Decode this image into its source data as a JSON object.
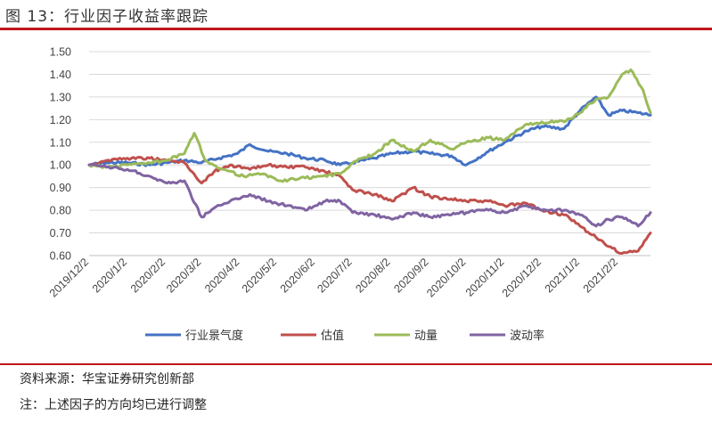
{
  "header": {
    "title": "图 13：行业因子收益率跟踪"
  },
  "footer": {
    "source": "资料来源：华宝证券研究创新部",
    "note": "注：上述因子的方向均已进行调整"
  },
  "chart_data": {
    "type": "line",
    "ylim": [
      0.6,
      1.5
    ],
    "yticks": [
      "0.60",
      "0.70",
      "0.80",
      "0.90",
      "1.00",
      "1.10",
      "1.20",
      "1.30",
      "1.40",
      "1.50"
    ],
    "xticks": [
      "2019/12/2",
      "2020/1/2",
      "2020/2/2",
      "2020/3/2",
      "2020/4/2",
      "2020/5/2",
      "2020/6/2",
      "2020/7/2",
      "2020/8/2",
      "2020/9/2",
      "2020/10/2",
      "2020/11/2",
      "2020/12/2",
      "2021/1/2",
      "2021/2/2"
    ],
    "x_end": "2021/2/28",
    "legend_position": "bottom",
    "series": [
      {
        "name": "行业景气度",
        "color": "#4472c4",
        "points": [
          [
            "2019/12/2",
            1.0
          ],
          [
            "2019/12/16",
            1.01
          ],
          [
            "2020/1/2",
            1.01
          ],
          [
            "2020/1/20",
            1.0
          ],
          [
            "2020/2/3",
            1.01
          ],
          [
            "2020/2/17",
            1.02
          ],
          [
            "2020/3/2",
            1.01
          ],
          [
            "2020/3/16",
            1.03
          ],
          [
            "2020/3/31",
            1.05
          ],
          [
            "2020/4/10",
            1.09
          ],
          [
            "2020/4/25",
            1.06
          ],
          [
            "2020/5/10",
            1.05
          ],
          [
            "2020/5/25",
            1.03
          ],
          [
            "2020/6/10",
            1.02
          ],
          [
            "2020/6/22",
            1.0
          ],
          [
            "2020/7/2",
            1.01
          ],
          [
            "2020/7/20",
            1.03
          ],
          [
            "2020/8/3",
            1.05
          ],
          [
            "2020/8/20",
            1.06
          ],
          [
            "2020/9/3",
            1.05
          ],
          [
            "2020/9/20",
            1.04
          ],
          [
            "2020/10/2",
            1.0
          ],
          [
            "2020/10/20",
            1.06
          ],
          [
            "2020/11/2",
            1.1
          ],
          [
            "2020/11/20",
            1.15
          ],
          [
            "2020/12/2",
            1.17
          ],
          [
            "2020/12/20",
            1.16
          ],
          [
            "2021/1/2",
            1.24
          ],
          [
            "2021/1/15",
            1.3
          ],
          [
            "2021/1/25",
            1.22
          ],
          [
            "2021/2/5",
            1.24
          ],
          [
            "2021/2/18",
            1.23
          ],
          [
            "2021/2/28",
            1.22
          ]
        ]
      },
      {
        "name": "估值",
        "color": "#c0504d",
        "points": [
          [
            "2019/12/2",
            1.0
          ],
          [
            "2019/12/16",
            1.02
          ],
          [
            "2020/1/2",
            1.03
          ],
          [
            "2020/1/20",
            1.03
          ],
          [
            "2020/2/3",
            1.02
          ],
          [
            "2020/2/17",
            1.01
          ],
          [
            "2020/3/2",
            0.92
          ],
          [
            "2020/3/12",
            0.97
          ],
          [
            "2020/3/25",
            1.0
          ],
          [
            "2020/4/10",
            0.98
          ],
          [
            "2020/4/25",
            1.0
          ],
          [
            "2020/5/10",
            0.99
          ],
          [
            "2020/5/25",
            0.99
          ],
          [
            "2020/6/10",
            0.97
          ],
          [
            "2020/6/22",
            0.95
          ],
          [
            "2020/7/2",
            0.89
          ],
          [
            "2020/7/20",
            0.87
          ],
          [
            "2020/8/3",
            0.84
          ],
          [
            "2020/8/20",
            0.9
          ],
          [
            "2020/9/3",
            0.86
          ],
          [
            "2020/9/20",
            0.85
          ],
          [
            "2020/10/2",
            0.84
          ],
          [
            "2020/10/20",
            0.84
          ],
          [
            "2020/11/2",
            0.82
          ],
          [
            "2020/11/20",
            0.83
          ],
          [
            "2020/12/2",
            0.8
          ],
          [
            "2020/12/20",
            0.78
          ],
          [
            "2021/1/2",
            0.73
          ],
          [
            "2021/1/15",
            0.68
          ],
          [
            "2021/1/25",
            0.64
          ],
          [
            "2021/2/5",
            0.61
          ],
          [
            "2021/2/18",
            0.62
          ],
          [
            "2021/2/28",
            0.7
          ]
        ]
      },
      {
        "name": "动量",
        "color": "#9bbb59",
        "points": [
          [
            "2019/12/2",
            1.0
          ],
          [
            "2019/12/16",
            0.99
          ],
          [
            "2020/1/2",
            1.0
          ],
          [
            "2020/1/20",
            1.01
          ],
          [
            "2020/2/3",
            1.02
          ],
          [
            "2020/2/17",
            1.05
          ],
          [
            "2020/2/25",
            1.14
          ],
          [
            "2020/3/5",
            1.02
          ],
          [
            "2020/3/20",
            0.98
          ],
          [
            "2020/4/5",
            0.95
          ],
          [
            "2020/4/20",
            0.96
          ],
          [
            "2020/5/5",
            0.93
          ],
          [
            "2020/5/20",
            0.94
          ],
          [
            "2020/6/5",
            0.95
          ],
          [
            "2020/6/22",
            0.96
          ],
          [
            "2020/7/2",
            1.01
          ],
          [
            "2020/7/20",
            1.05
          ],
          [
            "2020/8/3",
            1.11
          ],
          [
            "2020/8/20",
            1.06
          ],
          [
            "2020/9/3",
            1.11
          ],
          [
            "2020/9/20",
            1.07
          ],
          [
            "2020/10/2",
            1.1
          ],
          [
            "2020/10/20",
            1.12
          ],
          [
            "2020/11/2",
            1.11
          ],
          [
            "2020/11/20",
            1.18
          ],
          [
            "2020/12/2",
            1.19
          ],
          [
            "2020/12/20",
            1.19
          ],
          [
            "2021/1/2",
            1.23
          ],
          [
            "2021/1/15",
            1.29
          ],
          [
            "2021/1/25",
            1.3
          ],
          [
            "2021/2/5",
            1.4
          ],
          [
            "2021/2/12",
            1.42
          ],
          [
            "2021/2/22",
            1.33
          ],
          [
            "2021/2/28",
            1.23
          ]
        ]
      },
      {
        "name": "波动率",
        "color": "#8064a2",
        "points": [
          [
            "2019/12/2",
            1.0
          ],
          [
            "2019/12/16",
            0.99
          ],
          [
            "2020/1/2",
            0.98
          ],
          [
            "2020/1/20",
            0.95
          ],
          [
            "2020/2/3",
            0.92
          ],
          [
            "2020/2/17",
            0.93
          ],
          [
            "2020/3/2",
            0.77
          ],
          [
            "2020/3/12",
            0.81
          ],
          [
            "2020/3/25",
            0.84
          ],
          [
            "2020/4/10",
            0.87
          ],
          [
            "2020/4/25",
            0.84
          ],
          [
            "2020/5/10",
            0.82
          ],
          [
            "2020/5/25",
            0.8
          ],
          [
            "2020/6/10",
            0.84
          ],
          [
            "2020/6/22",
            0.84
          ],
          [
            "2020/7/2",
            0.79
          ],
          [
            "2020/7/20",
            0.78
          ],
          [
            "2020/8/3",
            0.76
          ],
          [
            "2020/8/20",
            0.79
          ],
          [
            "2020/9/3",
            0.77
          ],
          [
            "2020/9/20",
            0.78
          ],
          [
            "2020/10/2",
            0.79
          ],
          [
            "2020/10/20",
            0.8
          ],
          [
            "2020/11/2",
            0.79
          ],
          [
            "2020/11/20",
            0.82
          ],
          [
            "2020/12/2",
            0.8
          ],
          [
            "2020/12/20",
            0.8
          ],
          [
            "2021/1/2",
            0.78
          ],
          [
            "2021/1/15",
            0.73
          ],
          [
            "2021/1/25",
            0.76
          ],
          [
            "2021/2/5",
            0.77
          ],
          [
            "2021/2/18",
            0.73
          ],
          [
            "2021/2/28",
            0.79
          ]
        ]
      }
    ]
  }
}
